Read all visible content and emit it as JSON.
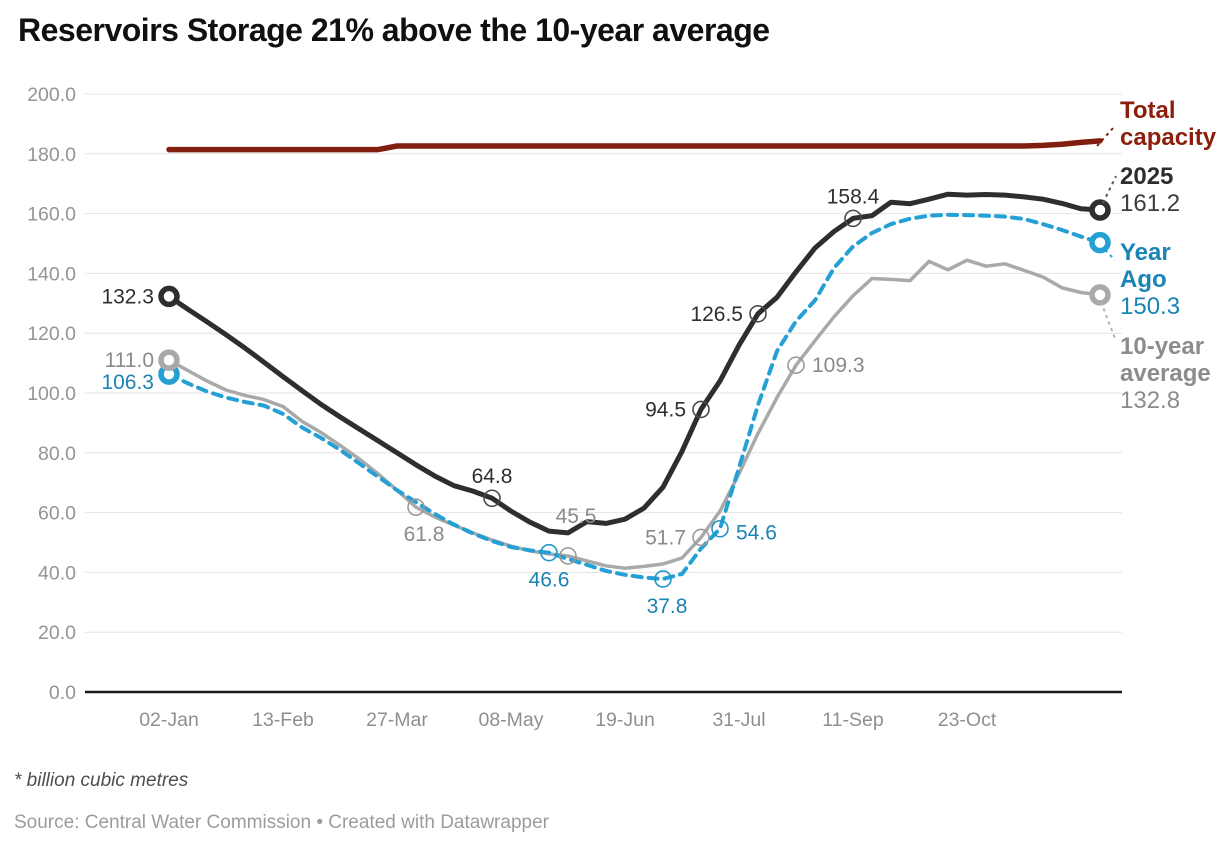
{
  "title": "Reservoirs Storage 21% above the 10-year average",
  "footnote": "* billion cubic metres",
  "source": "Source: Central Water Commission • Created with Datawrapper",
  "colors": {
    "total_capacity": "#801f10",
    "line_2025": "#2e2e2e",
    "year_ago": "#25a0d4",
    "avg_10yr": "#a9a9a9",
    "grid": "#e4e4e4",
    "axis_text": "#949494",
    "baseline": "#1a1a1a"
  },
  "chart_data": {
    "type": "line",
    "title": "Reservoirs Storage 21% above the 10-year average",
    "unit": "billion cubic metres",
    "ylim": [
      0,
      200
    ],
    "grid": "horizontal",
    "legend_position": "right",
    "y_ticks": [
      {
        "v": 0,
        "label": "0.0"
      },
      {
        "v": 20,
        "label": "20.0"
      },
      {
        "v": 40,
        "label": "40.0"
      },
      {
        "v": 60,
        "label": "60.0"
      },
      {
        "v": 80,
        "label": "80.0"
      },
      {
        "v": 100,
        "label": "100.0"
      },
      {
        "v": 120,
        "label": "120.0"
      },
      {
        "v": 140,
        "label": "140.0"
      },
      {
        "v": 160,
        "label": "160.0"
      },
      {
        "v": 180,
        "label": "180.0"
      },
      {
        "v": 200,
        "label": "200.0"
      }
    ],
    "x_ticks": [
      {
        "i": 0,
        "label": "02-Jan"
      },
      {
        "i": 6,
        "label": "13-Feb"
      },
      {
        "i": 12,
        "label": "27-Mar"
      },
      {
        "i": 18,
        "label": "08-May"
      },
      {
        "i": 24,
        "label": "19-Jun"
      },
      {
        "i": 30,
        "label": "31-Jul"
      },
      {
        "i": 36,
        "label": "11-Sep"
      },
      {
        "i": 42,
        "label": "23-Oct"
      }
    ],
    "series": [
      {
        "name": "Total capacity",
        "color": "#801f10",
        "label_color": "#8b1e0c",
        "style": "solid",
        "values": [
          181.4,
          181.4,
          181.4,
          181.4,
          181.4,
          181.4,
          181.4,
          181.4,
          181.4,
          181.4,
          181.4,
          181.4,
          182.6,
          182.6,
          182.6,
          182.6,
          182.6,
          182.6,
          182.6,
          182.6,
          182.6,
          182.6,
          182.6,
          182.6,
          182.6,
          182.6,
          182.6,
          182.6,
          182.6,
          182.6,
          182.6,
          182.6,
          182.6,
          182.6,
          182.6,
          182.6,
          182.6,
          182.6,
          182.6,
          182.6,
          182.6,
          182.6,
          182.6,
          182.6,
          182.6,
          182.6,
          182.8,
          183.2,
          183.8,
          184.3
        ]
      },
      {
        "name": "2025",
        "color": "#2e2e2e",
        "label_color": "#2f2f2f",
        "style": "solid",
        "end_label": "161.2",
        "values": [
          132.3,
          128.0,
          123.8,
          119.5,
          115.0,
          110.3,
          105.5,
          100.8,
          96.2,
          92.0,
          88.0,
          84.0,
          80.0,
          76.0,
          72.2,
          69.0,
          67.2,
          64.8,
          60.5,
          56.8,
          53.8,
          53.2,
          57.0,
          56.4,
          57.8,
          61.5,
          68.5,
          80.5,
          94.5,
          104.0,
          116.0,
          126.5,
          132.0,
          140.5,
          148.5,
          154.0,
          158.4,
          159.3,
          163.8,
          163.3,
          164.8,
          166.5,
          166.2,
          166.4,
          166.2,
          165.6,
          164.8,
          163.4,
          161.6,
          161.2
        ]
      },
      {
        "name": "Year Ago",
        "color": "#25a0d4",
        "label_color": "#1a84b4",
        "style": "dashed",
        "end_label": "150.3",
        "values": [
          106.3,
          103.2,
          100.5,
          98.5,
          97.0,
          95.8,
          93.0,
          88.5,
          85.0,
          81.0,
          76.5,
          72.0,
          67.5,
          63.5,
          59.5,
          56.0,
          53.0,
          50.5,
          48.5,
          47.4,
          46.6,
          44.5,
          42.5,
          40.5,
          39.2,
          38.3,
          37.8,
          39.5,
          48.0,
          54.6,
          75.0,
          96.0,
          114.0,
          124.0,
          131.0,
          141.8,
          149.0,
          153.5,
          156.5,
          158.3,
          159.3,
          159.6,
          159.5,
          159.3,
          159.0,
          158.2,
          156.5,
          154.5,
          152.3,
          150.3
        ]
      },
      {
        "name": "10-year average",
        "color": "#a9a9a9",
        "label_color": "#8a8a8a",
        "style": "solid",
        "end_label": "132.8",
        "values": [
          111.0,
          107.5,
          104.0,
          101.0,
          99.2,
          97.8,
          95.5,
          90.5,
          86.8,
          82.5,
          78.0,
          73.0,
          67.5,
          61.8,
          58.5,
          55.8,
          53.2,
          50.8,
          48.8,
          47.2,
          46.2,
          45.5,
          43.8,
          42.2,
          41.4,
          42.0,
          42.8,
          44.8,
          51.7,
          60.5,
          73.0,
          86.5,
          98.5,
          109.3,
          117.5,
          125.5,
          132.5,
          138.3,
          138.0,
          137.6,
          144.0,
          141.2,
          144.4,
          142.4,
          143.2,
          141.0,
          138.8,
          135.2,
          133.6,
          132.8
        ]
      }
    ],
    "annotations": [
      {
        "series": 1,
        "point": 0,
        "text": "132.3",
        "placement": "left",
        "marker": "ring"
      },
      {
        "series": 1,
        "point": 17,
        "text": "64.8",
        "placement": "above",
        "marker": "circle"
      },
      {
        "series": 1,
        "point": 28,
        "text": "94.5",
        "placement": "left",
        "marker": "circle"
      },
      {
        "series": 1,
        "point": 31,
        "text": "126.5",
        "placement": "left",
        "marker": "circle"
      },
      {
        "series": 1,
        "point": 36,
        "text": "158.4",
        "placement": "above",
        "marker": "circle"
      },
      {
        "series": 2,
        "point": 0,
        "text": "106.3",
        "placement": "left",
        "marker": "ring",
        "dy": 8
      },
      {
        "series": 2,
        "point": 20,
        "text": "46.6",
        "placement": "below",
        "marker": "circle"
      },
      {
        "series": 2,
        "point": 26,
        "text": "37.8",
        "placement": "below",
        "marker": "circle",
        "dx": 4
      },
      {
        "series": 2,
        "point": 29,
        "text": "54.6",
        "placement": "right",
        "marker": "circle",
        "dy": 4
      },
      {
        "series": 3,
        "point": 0,
        "text": "111.0",
        "placement": "left",
        "marker": "ring"
      },
      {
        "series": 3,
        "point": 13,
        "text": "61.8",
        "placement": "below",
        "marker": "circle",
        "dx": 8
      },
      {
        "series": 3,
        "point": 21,
        "text": "45.5",
        "placement": "above",
        "marker": "circle",
        "dx": 8,
        "dy": -18
      },
      {
        "series": 3,
        "point": 28,
        "text": "51.7",
        "placement": "left",
        "marker": "circle"
      },
      {
        "series": 3,
        "point": 33,
        "text": "109.3",
        "placement": "right",
        "marker": "circle"
      }
    ],
    "ring_markers": [
      {
        "series": 1,
        "point": 49
      },
      {
        "series": 2,
        "point": 49
      },
      {
        "series": 3,
        "point": 49
      }
    ]
  }
}
